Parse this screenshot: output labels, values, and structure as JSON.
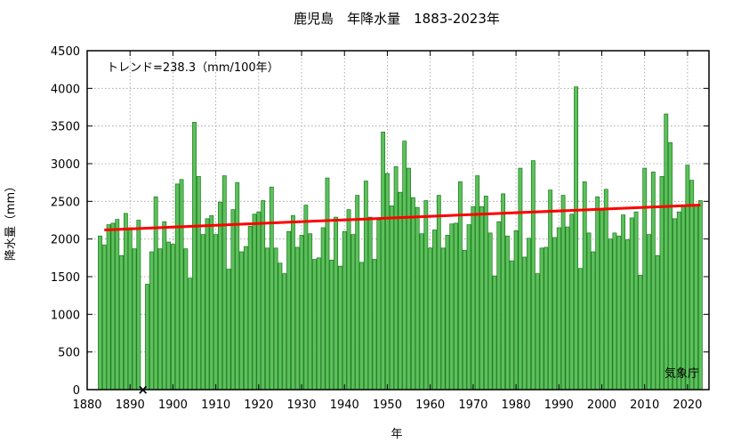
{
  "chart_data": {
    "type": "bar",
    "title": "鹿児島　年降水量　1883-2023年",
    "xlabel": "年",
    "ylabel": "降水量（mm）",
    "trend_label": "トレンド=238.3（mm/100年）",
    "source": "気象庁",
    "missing_marker": "×",
    "xlim": [
      1880,
      2025
    ],
    "ylim": [
      0,
      4500
    ],
    "xticks": [
      1880,
      1890,
      1900,
      1910,
      1920,
      1930,
      1940,
      1950,
      1960,
      1970,
      1980,
      1990,
      2000,
      2010,
      2020
    ],
    "yticks": [
      0,
      500,
      1000,
      1500,
      2000,
      2500,
      3000,
      3500,
      4000,
      4500
    ],
    "grid": true,
    "bar_color": "#5cc05c",
    "bar_edge_color": "#1a7a1a",
    "trend_color": "#ff0000",
    "trend": {
      "x": [
        1884,
        2023
      ],
      "y": [
        2120,
        2451
      ]
    },
    "missing_years": [
      1893
    ],
    "years": [
      1883,
      1884,
      1885,
      1886,
      1887,
      1888,
      1889,
      1890,
      1891,
      1892,
      1893,
      1894,
      1895,
      1896,
      1897,
      1898,
      1899,
      1900,
      1901,
      1902,
      1903,
      1904,
      1905,
      1906,
      1907,
      1908,
      1909,
      1910,
      1911,
      1912,
      1913,
      1914,
      1915,
      1916,
      1917,
      1918,
      1919,
      1920,
      1921,
      1922,
      1923,
      1924,
      1925,
      1926,
      1927,
      1928,
      1929,
      1930,
      1931,
      1932,
      1933,
      1934,
      1935,
      1936,
      1937,
      1938,
      1939,
      1940,
      1941,
      1942,
      1943,
      1944,
      1945,
      1946,
      1947,
      1948,
      1949,
      1950,
      1951,
      1952,
      1953,
      1954,
      1955,
      1956,
      1957,
      1958,
      1959,
      1960,
      1961,
      1962,
      1963,
      1964,
      1965,
      1966,
      1967,
      1968,
      1969,
      1970,
      1971,
      1972,
      1973,
      1974,
      1975,
      1976,
      1977,
      1978,
      1979,
      1980,
      1981,
      1982,
      1983,
      1984,
      1985,
      1986,
      1987,
      1988,
      1989,
      1990,
      1991,
      1992,
      1993,
      1994,
      1995,
      1996,
      1997,
      1998,
      1999,
      2000,
      2001,
      2002,
      2003,
      2004,
      2005,
      2006,
      2007,
      2008,
      2009,
      2010,
      2011,
      2012,
      2013,
      2014,
      2015,
      2016,
      2017,
      2018,
      2019,
      2020,
      2021,
      2022,
      2023
    ],
    "values": [
      2040,
      1920,
      2190,
      2210,
      2260,
      1780,
      2340,
      2150,
      1870,
      2250,
      null,
      1400,
      1830,
      2560,
      1870,
      2230,
      1960,
      1930,
      2730,
      2790,
      1870,
      1480,
      3550,
      2830,
      2060,
      2270,
      2310,
      2060,
      2490,
      2840,
      1600,
      2390,
      2750,
      1830,
      1900,
      2170,
      2330,
      2360,
      2510,
      1880,
      2690,
      1880,
      1680,
      1540,
      2100,
      2310,
      1890,
      2050,
      2450,
      2070,
      1730,
      1750,
      2150,
      2810,
      1720,
      2290,
      1640,
      2100,
      2390,
      2060,
      2580,
      1690,
      2770,
      2290,
      1730,
      2250,
      3420,
      2870,
      2440,
      2960,
      2620,
      3300,
      2940,
      2550,
      2420,
      2070,
      2510,
      1880,
      2120,
      2580,
      1880,
      2050,
      2200,
      2210,
      2760,
      1850,
      2190,
      2430,
      2840,
      2430,
      2570,
      2080,
      1510,
      2230,
      2600,
      2040,
      1710,
      2110,
      2940,
      1760,
      2010,
      3040,
      1540,
      1880,
      1890,
      2650,
      2020,
      2150,
      2580,
      2160,
      2330,
      4020,
      1610,
      2760,
      2080,
      1830,
      2560,
      2380,
      2660,
      2000,
      2080,
      2040,
      2320,
      1990,
      2280,
      2360,
      1520,
      2940,
      2060,
      2890,
      1780,
      2830,
      3660,
      3280,
      2270,
      2360,
      2450,
      2980,
      2780,
      2450,
      2510
    ]
  }
}
